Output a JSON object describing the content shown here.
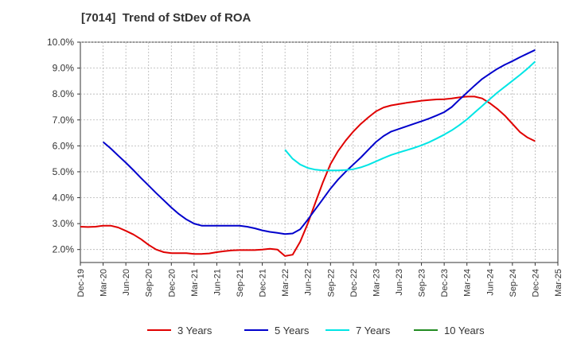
{
  "chart_data": {
    "type": "line",
    "title": "[7014]  Trend of StDev of ROA",
    "xlabel": "",
    "ylabel": "",
    "x_ticks": [
      "Dec-19",
      "Mar-20",
      "Jun-20",
      "Sep-20",
      "Dec-20",
      "Mar-21",
      "Jun-21",
      "Sep-21",
      "Dec-21",
      "Mar-22",
      "Jun-22",
      "Sep-22",
      "Dec-22",
      "Mar-23",
      "Jun-23",
      "Sep-23",
      "Dec-23",
      "Mar-24",
      "Jun-24",
      "Sep-24",
      "Dec-24",
      "Mar-25"
    ],
    "y_ticks": [
      "2.0%",
      "3.0%",
      "4.0%",
      "5.0%",
      "6.0%",
      "7.0%",
      "8.0%",
      "9.0%",
      "10.0%"
    ],
    "ylim": [
      1.5,
      10.0
    ],
    "grid": true,
    "legend_position": "bottom",
    "series": [
      {
        "name": "3 Years",
        "color": "#e00000",
        "x": [
          "Dec-19",
          "Jan-20",
          "Feb-20",
          "Mar-20",
          "Apr-20",
          "May-20",
          "Jun-20",
          "Jul-20",
          "Aug-20",
          "Sep-20",
          "Oct-20",
          "Nov-20",
          "Dec-20",
          "Jan-21",
          "Feb-21",
          "Mar-21",
          "Apr-21",
          "May-21",
          "Jun-21",
          "Jul-21",
          "Aug-21",
          "Sep-21",
          "Oct-21",
          "Nov-21",
          "Dec-21",
          "Jan-22",
          "Feb-22",
          "Mar-22",
          "Apr-22",
          "May-22",
          "Jun-22",
          "Jul-22",
          "Aug-22",
          "Sep-22",
          "Oct-22",
          "Nov-22",
          "Dec-22",
          "Jan-23",
          "Feb-23",
          "Mar-23",
          "Apr-23",
          "May-23",
          "Jun-23",
          "Jul-23",
          "Aug-23",
          "Sep-23",
          "Oct-23",
          "Nov-23",
          "Dec-23",
          "Jan-24",
          "Feb-24",
          "Mar-24",
          "Apr-24",
          "May-24",
          "Jun-24",
          "Jul-24",
          "Aug-24",
          "Sep-24",
          "Oct-24",
          "Nov-24",
          "Dec-24"
        ],
        "values": [
          2.88,
          2.87,
          2.88,
          2.92,
          2.92,
          2.85,
          2.72,
          2.58,
          2.4,
          2.18,
          2.0,
          1.9,
          1.86,
          1.86,
          1.86,
          1.83,
          1.83,
          1.85,
          1.9,
          1.94,
          1.97,
          1.98,
          1.98,
          1.98,
          2.0,
          2.03,
          2.0,
          1.75,
          1.8,
          2.3,
          3.0,
          3.8,
          4.6,
          5.3,
          5.8,
          6.2,
          6.55,
          6.85,
          7.1,
          7.33,
          7.48,
          7.56,
          7.61,
          7.66,
          7.7,
          7.74,
          7.77,
          7.79,
          7.8,
          7.83,
          7.87,
          7.9,
          7.9,
          7.83,
          7.65,
          7.43,
          7.17,
          6.85,
          6.53,
          6.32,
          6.18
        ]
      },
      {
        "name": "5 Years",
        "color": "#0000cc",
        "x": [
          "Mar-20",
          "Apr-20",
          "May-20",
          "Jun-20",
          "Jul-20",
          "Aug-20",
          "Sep-20",
          "Oct-20",
          "Nov-20",
          "Dec-20",
          "Jan-21",
          "Feb-21",
          "Mar-21",
          "Apr-21",
          "May-21",
          "Jun-21",
          "Jul-21",
          "Aug-21",
          "Sep-21",
          "Oct-21",
          "Nov-21",
          "Dec-21",
          "Jan-22",
          "Feb-22",
          "Mar-22",
          "Apr-22",
          "May-22",
          "Jun-22",
          "Jul-22",
          "Aug-22",
          "Sep-22",
          "Oct-22",
          "Nov-22",
          "Dec-22",
          "Jan-23",
          "Feb-23",
          "Mar-23",
          "Apr-23",
          "May-23",
          "Jun-23",
          "Jul-23",
          "Aug-23",
          "Sep-23",
          "Oct-23",
          "Nov-23",
          "Dec-23",
          "Jan-24",
          "Feb-24",
          "Mar-24",
          "Apr-24",
          "May-24",
          "Jun-24",
          "Jul-24",
          "Aug-24",
          "Sep-24",
          "Oct-24",
          "Nov-24",
          "Dec-24"
        ],
        "values": [
          6.15,
          5.9,
          5.62,
          5.35,
          5.06,
          4.76,
          4.47,
          4.18,
          3.9,
          3.62,
          3.37,
          3.16,
          3.0,
          2.92,
          2.92,
          2.92,
          2.92,
          2.92,
          2.92,
          2.88,
          2.82,
          2.74,
          2.68,
          2.64,
          2.6,
          2.62,
          2.78,
          3.15,
          3.55,
          3.95,
          4.35,
          4.7,
          5.0,
          5.28,
          5.55,
          5.85,
          6.15,
          6.38,
          6.55,
          6.65,
          6.75,
          6.85,
          6.95,
          7.05,
          7.17,
          7.3,
          7.5,
          7.78,
          8.05,
          8.32,
          8.58,
          8.78,
          8.97,
          9.13,
          9.27,
          9.42,
          9.56,
          9.7
        ]
      },
      {
        "name": "7 Years",
        "color": "#00e5e5",
        "x": [
          "Mar-22",
          "Apr-22",
          "May-22",
          "Jun-22",
          "Jul-22",
          "Aug-22",
          "Sep-22",
          "Oct-22",
          "Nov-22",
          "Dec-22",
          "Jan-23",
          "Feb-23",
          "Mar-23",
          "Apr-23",
          "May-23",
          "Jun-23",
          "Jul-23",
          "Aug-23",
          "Sep-23",
          "Oct-23",
          "Nov-23",
          "Dec-23",
          "Jan-24",
          "Feb-24",
          "Mar-24",
          "Apr-24",
          "May-24",
          "Jun-24",
          "Jul-24",
          "Aug-24",
          "Sep-24",
          "Oct-24",
          "Nov-24",
          "Dec-24"
        ],
        "values": [
          5.85,
          5.5,
          5.28,
          5.15,
          5.08,
          5.05,
          5.05,
          5.05,
          5.07,
          5.1,
          5.17,
          5.27,
          5.4,
          5.53,
          5.65,
          5.74,
          5.83,
          5.92,
          6.02,
          6.14,
          6.28,
          6.43,
          6.6,
          6.8,
          7.02,
          7.28,
          7.54,
          7.8,
          8.05,
          8.28,
          8.51,
          8.74,
          8.98,
          9.25
        ]
      },
      {
        "name": "10 Years",
        "color": "#228b22",
        "x": [],
        "values": []
      }
    ]
  }
}
